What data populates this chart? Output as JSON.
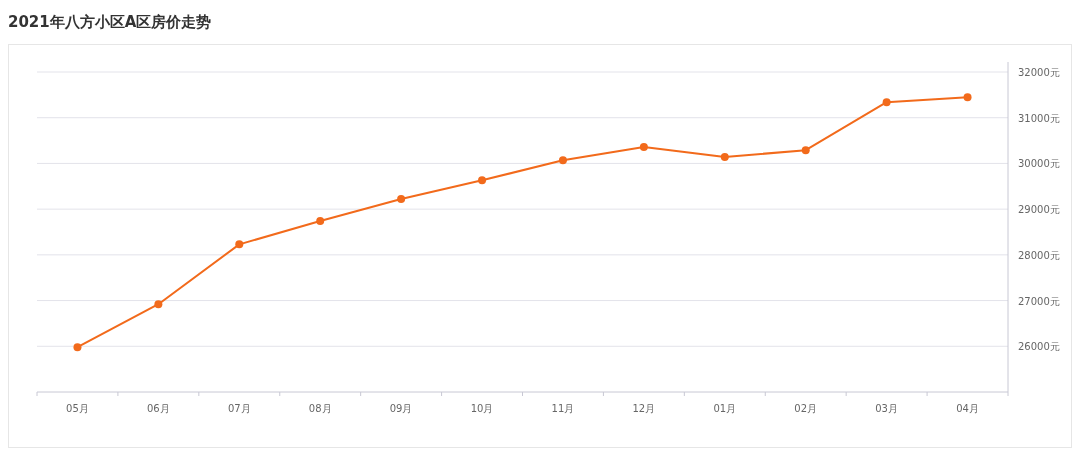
{
  "chart_data": {
    "type": "line",
    "title": "2021年八方小区A区房价走势",
    "categories": [
      "05月",
      "06月",
      "07月",
      "08月",
      "09月",
      "10月",
      "11月",
      "12月",
      "01月",
      "02月",
      "03月",
      "04月"
    ],
    "series": [
      {
        "color": "#f26a1b",
        "values": [
          25980,
          26920,
          28230,
          28740,
          29220,
          29630,
          30070,
          30360,
          30140,
          30290,
          31340,
          31450
        ]
      }
    ],
    "ylim": [
      25000,
      32000
    ],
    "yticks": [
      {
        "value": 26000,
        "label": "26000元"
      },
      {
        "value": 27000,
        "label": "27000元"
      },
      {
        "value": 28000,
        "label": "28000元"
      },
      {
        "value": 29000,
        "label": "29000元"
      },
      {
        "value": 30000,
        "label": "30000元"
      },
      {
        "value": 31000,
        "label": "31000元"
      },
      {
        "value": 32000,
        "label": "32000元"
      }
    ],
    "grid": "y",
    "marker": "circle"
  }
}
